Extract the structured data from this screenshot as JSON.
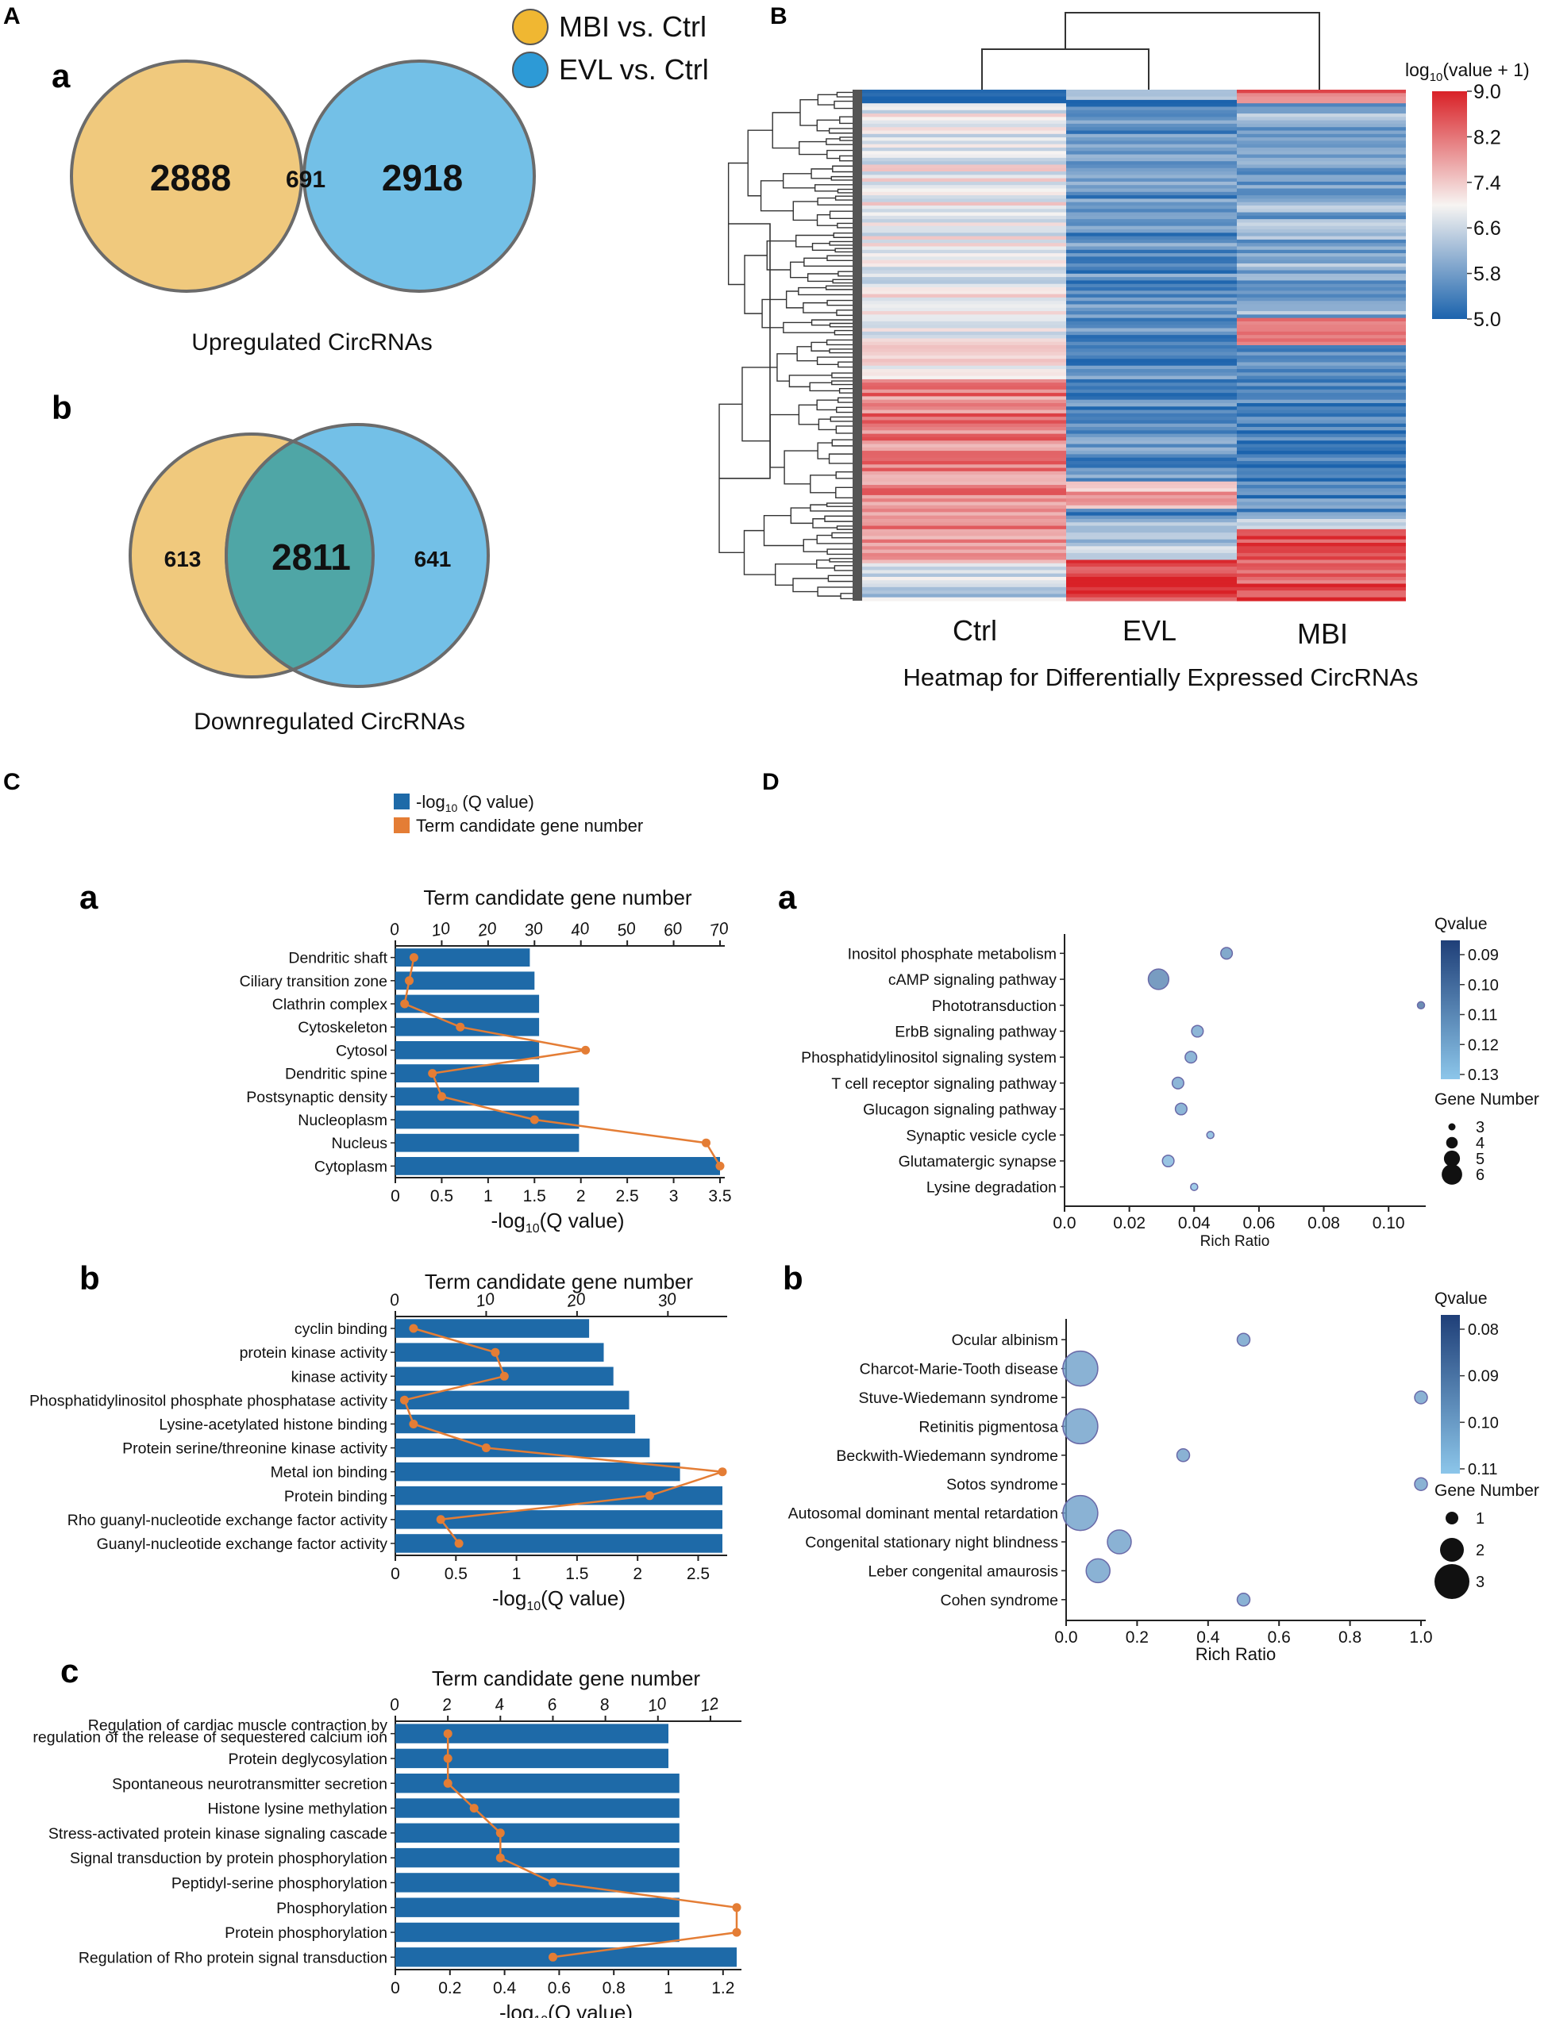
{
  "panels": {
    "A": {
      "label": "A",
      "legend": [
        {
          "name": "MBI vs. Ctrl",
          "color": "#f0b732"
        },
        {
          "name": "EVL vs. Ctrl",
          "color": "#2d9ad6"
        }
      ],
      "up": {
        "label": "a",
        "left_only": "2888",
        "overlap": "691",
        "right_only": "2918",
        "caption": "Upregulated CircRNAs"
      },
      "down": {
        "label": "b",
        "left_only": "613",
        "overlap": "2811",
        "right_only": "641",
        "caption": "Downregulated CircRNAs"
      },
      "colors": {
        "left": "#efc676",
        "right": "#6cbde6",
        "overlap": "#4fa6a6",
        "edge": "#6b6b6b"
      }
    },
    "B": {
      "label": "B",
      "title": "Heatmap for Differentially Expressed CircRNAs",
      "columns": [
        "Ctrl",
        "EVL",
        "MBI"
      ],
      "colorbar_title_main": "log",
      "colorbar_title_sub": "10",
      "colorbar_title_rest": "(value + 1)",
      "colorbar_ticks": [
        "9.0",
        "8.2",
        "7.4",
        "6.6",
        "5.8",
        "5.0"
      ],
      "colors": {
        "low": "#1b63ad",
        "mid": "#f7f4f2",
        "high": "#d92127"
      },
      "rows": 150
    },
    "C": {
      "label": "C",
      "legend_bar_main": "-log",
      "legend_bar_sub": "10",
      "legend_bar_rest": " (Q value)",
      "legend_line": "Term candidate gene number",
      "bar_color": "#1e6aa8",
      "line_color": "#e47d35",
      "top_axis_title": "Term candidate gene number",
      "bottom_axis_main": "-log",
      "bottom_axis_sub": "10",
      "bottom_axis_rest": "(Q value)"
    },
    "D": {
      "label": "D",
      "xlabel": "Rich Ratio",
      "qvalue_title": "Qvalue",
      "gene_number_title": "Gene Number"
    }
  },
  "chart_data": [
    {
      "id": "Ca",
      "type": "bar",
      "label": "a",
      "categories": [
        "Dendritic shaft",
        "Ciliary transition zone",
        "Clathrin complex",
        "Cytoskeleton",
        "Cytosol",
        "Dendritic spine",
        "Postsynaptic density",
        "Nucleoplasm",
        "Nucleus",
        "Cytoplasm"
      ],
      "values": [
        1.45,
        1.5,
        1.55,
        1.55,
        1.55,
        1.55,
        1.98,
        1.98,
        1.98,
        3.5
      ],
      "gene_numbers": [
        4,
        3,
        2,
        14,
        41,
        8,
        10,
        30,
        67,
        70
      ],
      "xlim": [
        0,
        3.5
      ],
      "xticks": [
        "0",
        "0.5",
        "1",
        "1.5",
        "2",
        "2.5",
        "3",
        "3.5"
      ],
      "top_ticks": [
        "0",
        "10",
        "20",
        "30",
        "40",
        "50",
        "60",
        "70"
      ],
      "top_max": 70
    },
    {
      "id": "Cb",
      "type": "bar",
      "label": "b",
      "categories": [
        "cyclin binding",
        "protein kinase activity",
        "kinase activity",
        "Phosphatidylinositol phosphate phosphatase activity",
        "Lysine-acetylated histone binding",
        "Protein serine/threonine kinase activity",
        "Metal ion binding",
        "Protein binding",
        "Rho guanyl-nucleotide exchange factor activity",
        "Guanyl-nucleotide exchange factor activity"
      ],
      "values": [
        1.6,
        1.72,
        1.8,
        1.93,
        1.98,
        2.1,
        2.35,
        2.7,
        2.7,
        2.7
      ],
      "gene_numbers": [
        2,
        11,
        12,
        1,
        2,
        10,
        36,
        28,
        5,
        7
      ],
      "xlim": [
        0,
        2.7
      ],
      "xticks": [
        "0",
        "0.5",
        "1",
        "1.5",
        "2",
        "2.5"
      ],
      "xtick_vals": [
        0,
        0.5,
        1,
        1.5,
        2,
        2.5
      ],
      "top_ticks": [
        "0",
        "10",
        "20",
        "30"
      ],
      "top_vals": [
        0,
        10,
        20,
        30
      ],
      "top_max": 36
    },
    {
      "id": "Cc",
      "type": "bar",
      "label": "c",
      "categories": [
        "Regulation of cardiac muscle contraction by regulation of the release of sequestered calcium ion",
        "Protein deglycosylation",
        "Spontaneous neurotransmitter secretion",
        "Histone lysine methylation",
        "Stress-activated protein kinase signaling cascade",
        "Signal transduction by protein phosphorylation",
        "Peptidyl-serine phosphorylation",
        "Phosphorylation",
        "Protein phosphorylation",
        "Regulation of Rho protein signal transduction"
      ],
      "values": [
        1.0,
        1.0,
        1.04,
        1.04,
        1.04,
        1.04,
        1.04,
        1.04,
        1.04,
        1.25
      ],
      "gene_numbers": [
        2,
        2,
        2,
        3,
        4,
        4,
        6,
        13,
        13,
        6
      ],
      "xlim": [
        0,
        1.25
      ],
      "xticks": [
        "0",
        "0.2",
        "0.4",
        "0.6",
        "0.8",
        "1",
        "1.2"
      ],
      "xtick_vals": [
        0,
        0.2,
        0.4,
        0.6,
        0.8,
        1,
        1.2
      ],
      "top_ticks": [
        "0",
        "2",
        "4",
        "6",
        "8",
        "10",
        "12"
      ],
      "top_vals": [
        0,
        2,
        4,
        6,
        8,
        10,
        12
      ],
      "top_max": 13
    },
    {
      "id": "Da",
      "type": "scatter",
      "label": "a",
      "categories": [
        "Inositol phosphate metabolism",
        "cAMP signaling pathway",
        "Phototransduction",
        "ErbB signaling pathway",
        "Phosphatidylinositol signaling system",
        "T cell receptor signaling pathway",
        "Glucagon signaling pathway",
        "Synaptic vesicle cycle",
        "Glutamatergic synapse",
        "Lysine degradation"
      ],
      "x": [
        0.05,
        0.029,
        0.11,
        0.041,
        0.039,
        0.035,
        0.036,
        0.045,
        0.032,
        0.04
      ],
      "qvalue": [
        0.115,
        0.11,
        0.105,
        0.12,
        0.12,
        0.12,
        0.12,
        0.125,
        0.125,
        0.128
      ],
      "gene_number": [
        4,
        6,
        3,
        4,
        4,
        4,
        4,
        3,
        4,
        3
      ],
      "xlim": [
        0,
        0.11
      ],
      "xticks": [
        "0.0",
        "0.02",
        "0.04",
        "0.06",
        "0.08",
        "0.10"
      ],
      "q_ticks": [
        "0.09",
        "0.10",
        "0.11",
        "0.12",
        "0.13"
      ],
      "size_ticks": [
        "3",
        "4",
        "5",
        "6"
      ]
    },
    {
      "id": "Db",
      "type": "scatter",
      "label": "b",
      "categories": [
        "Ocular albinism",
        "Charcot-Marie-Tooth disease",
        "Stuve-Wiedemann syndrome",
        "Retinitis pigmentosa",
        "Beckwith-Wiedemann syndrome",
        "Sotos syndrome",
        "Autosomal dominant mental retardation",
        "Congenital stationary night blindness",
        "Leber congenital amaurosis",
        "Cohen syndrome"
      ],
      "x": [
        0.5,
        0.04,
        1.0,
        0.04,
        0.33,
        1.0,
        0.04,
        0.15,
        0.09,
        0.5
      ],
      "qvalue": [
        0.105,
        0.105,
        0.105,
        0.105,
        0.105,
        0.105,
        0.105,
        0.105,
        0.105,
        0.105
      ],
      "gene_number": [
        1,
        3,
        1,
        3,
        1,
        1,
        3,
        2,
        2,
        1
      ],
      "xlim": [
        0,
        1.0
      ],
      "xticks": [
        "0.0",
        "0.2",
        "0.4",
        "0.6",
        "0.8",
        "1.0"
      ],
      "q_ticks": [
        "0.08",
        "0.09",
        "0.10",
        "0.11"
      ],
      "size_ticks": [
        "1",
        "2",
        "3"
      ]
    }
  ]
}
